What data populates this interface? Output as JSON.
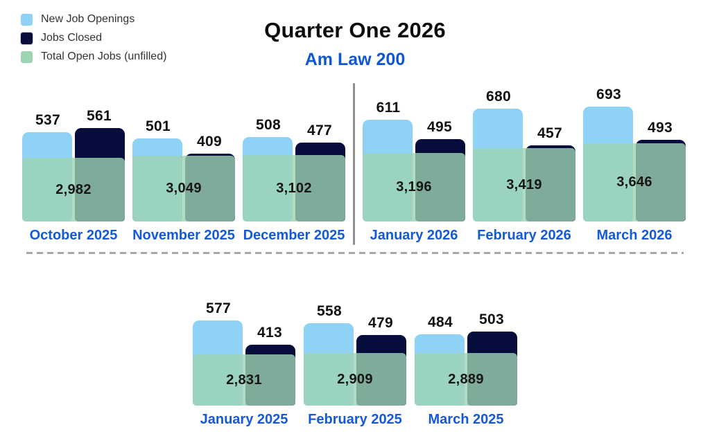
{
  "header": {
    "title": "Quarter One 2026",
    "subtitle": "Am Law 200"
  },
  "legend": {
    "items": [
      {
        "label": "New Job Openings",
        "color": "#8ED2F6"
      },
      {
        "label": "Jobs Closed",
        "color": "#060D3D"
      },
      {
        "label": "Total Open Jobs (unfilled)",
        "color": "#9ED3B2"
      }
    ]
  },
  "chart_data": {
    "type": "bar",
    "title": "Quarter One 2026",
    "subtitle": "Am Law 200",
    "legend": [
      "New Job Openings",
      "Jobs Closed",
      "Total Open Jobs (unfilled)"
    ],
    "legend_position": "top-left",
    "grid": false,
    "colors": {
      "new_job_openings": "#8ED2F6",
      "jobs_closed": "#060D3D",
      "total_open_jobs": "#9ED3B2",
      "month_label_blue": "#1459D7",
      "divider_gray": "#8F8F8F"
    },
    "sections": [
      {
        "name": "top-row",
        "divider_after_index": 2,
        "groups": [
          {
            "month": "October 2025",
            "new_job_openings": 537,
            "jobs_closed": 561,
            "total_open_jobs": 2982,
            "total_open_jobs_label": "2,982"
          },
          {
            "month": "November 2025",
            "new_job_openings": 501,
            "jobs_closed": 409,
            "total_open_jobs": 3049,
            "total_open_jobs_label": "3,049"
          },
          {
            "month": "December 2025",
            "new_job_openings": 508,
            "jobs_closed": 477,
            "total_open_jobs": 3102,
            "total_open_jobs_label": "3,102"
          },
          {
            "month": "January 2026",
            "new_job_openings": 611,
            "jobs_closed": 495,
            "total_open_jobs": 3196,
            "total_open_jobs_label": "3,196"
          },
          {
            "month": "February 2026",
            "new_job_openings": 680,
            "jobs_closed": 457,
            "total_open_jobs": 3419,
            "total_open_jobs_label": "3,419"
          },
          {
            "month": "March 2026",
            "new_job_openings": 693,
            "jobs_closed": 493,
            "total_open_jobs": 3646,
            "total_open_jobs_label": "3,646"
          }
        ]
      },
      {
        "name": "bottom-row",
        "groups": [
          {
            "month": "January 2025",
            "new_job_openings": 577,
            "jobs_closed": 413,
            "total_open_jobs": 2831,
            "total_open_jobs_label": "2,831"
          },
          {
            "month": "February 2025",
            "new_job_openings": 558,
            "jobs_closed": 479,
            "total_open_jobs": 2909,
            "total_open_jobs_label": "2,909"
          },
          {
            "month": "March 2025",
            "new_job_openings": 484,
            "jobs_closed": 503,
            "total_open_jobs": 2889,
            "total_open_jobs_label": "2,889"
          }
        ]
      }
    ]
  }
}
